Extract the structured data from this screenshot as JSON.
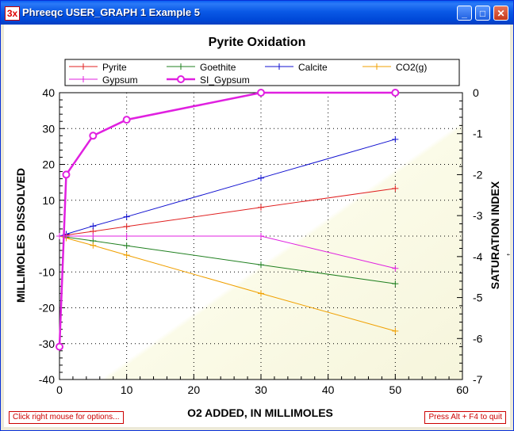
{
  "window": {
    "title": "Phreeqc USER_GRAPH 1 Example 5",
    "app_icon": "3x",
    "buttons": {
      "minimize": "_",
      "maximize": "□",
      "close": "✕"
    }
  },
  "status": {
    "left": "Click right mouse for options...",
    "right": "Press Alt + F4 to quit"
  },
  "chart_data": {
    "type": "line",
    "title": "Pyrite Oxidation",
    "xlabel": "O2 ADDED, IN MILLIMOLES",
    "ylabel": "MILLIMOLES DISSOLVED",
    "y2label": "SATURATION INDEX",
    "xlim": [
      0,
      60
    ],
    "ylim": [
      -40,
      40
    ],
    "y2lim": [
      -7,
      0
    ],
    "xticks": [
      "0",
      "10",
      "20",
      "30",
      "40",
      "50",
      "60"
    ],
    "yticks": [
      "40",
      "30",
      "20",
      "10",
      "0",
      "-10",
      "-20",
      "-30",
      "-40"
    ],
    "y2ticks": [
      "0",
      "-1",
      "-2",
      "-3",
      "-4",
      "-5",
      "-6",
      "-7"
    ],
    "grid": "dotted",
    "legend_position": "top",
    "x": [
      0,
      1,
      5,
      10,
      30,
      50
    ],
    "series": [
      {
        "name": "Pyrite",
        "color": "#e02020",
        "marker": "plus",
        "axis": "left",
        "values": [
          0,
          0.27,
          1.33,
          2.67,
          8.0,
          13.3
        ]
      },
      {
        "name": "Goethite",
        "color": "#208020",
        "marker": "plus",
        "axis": "left",
        "values": [
          0,
          -0.27,
          -1.33,
          -2.67,
          -8.0,
          -13.3
        ]
      },
      {
        "name": "Calcite",
        "color": "#1010d0",
        "marker": "plus",
        "axis": "left",
        "values": [
          0,
          0.55,
          2.8,
          5.4,
          16.2,
          27.0
        ]
      },
      {
        "name": "CO2(g)",
        "color": "#f0a000",
        "marker": "plus",
        "axis": "left",
        "values": [
          0,
          -0.55,
          -2.6,
          -5.3,
          -16.0,
          -26.5
        ]
      },
      {
        "name": "Gypsum",
        "color": "#e020e0",
        "marker": "plus",
        "axis": "left",
        "values": [
          0,
          0,
          0,
          0,
          0,
          -9.0
        ]
      },
      {
        "name": "SI_Gypsum",
        "color": "#e020e0",
        "marker": "circle",
        "axis": "right",
        "bold": true,
        "values": [
          -6.2,
          -2.0,
          -1.05,
          -0.66,
          0.0,
          0.0
        ]
      }
    ]
  }
}
